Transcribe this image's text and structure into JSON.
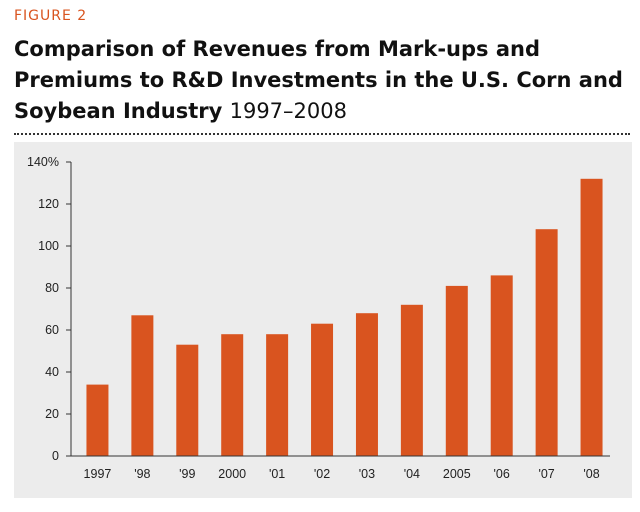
{
  "figure_label": "FIGURE 2",
  "title": {
    "main": "Comparison of Revenues from Mark-ups and Premiums to R&D Investments in the U.S. Corn and Soybean Industry",
    "years": "1997–2008"
  },
  "colors": {
    "bar": "#d9541f",
    "accent": "#d9541f",
    "panel": "#ececec"
  },
  "chart_data": {
    "type": "bar",
    "title": "Comparison of Revenues from Mark-ups and Premiums to R&D Investments in the U.S. Corn and Soybean Industry 1997–2008",
    "categories": [
      "1997",
      "'98",
      "'99",
      "2000",
      "'01",
      "'02",
      "'03",
      "'04",
      "2005",
      "'06",
      "'07",
      "'08"
    ],
    "values": [
      34,
      67,
      53,
      58,
      58,
      63,
      68,
      72,
      81,
      86,
      108,
      132
    ],
    "xlabel": "",
    "ylabel": "",
    "ylim": [
      0,
      140
    ],
    "yticks": [
      0,
      20,
      40,
      60,
      80,
      100,
      120,
      140
    ],
    "ytick_labels": [
      "0",
      "20",
      "40",
      "60",
      "80",
      "100",
      "120",
      "140%"
    ],
    "grid": false,
    "legend": "none"
  }
}
